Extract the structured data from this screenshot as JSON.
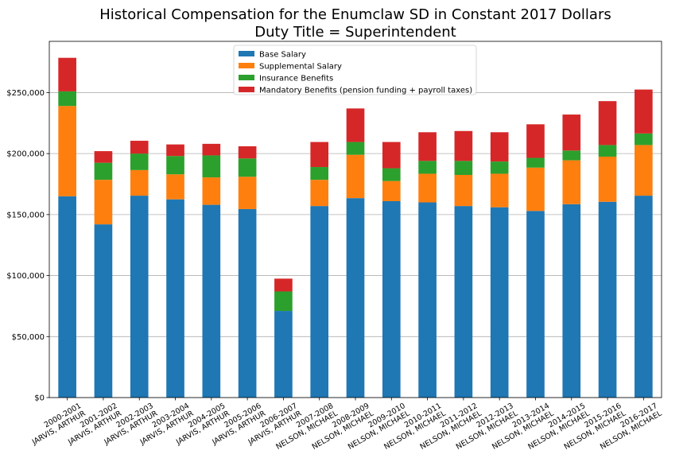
{
  "chart_data": {
    "type": "bar",
    "stacked": true,
    "title": "Historical Compensation for the Enumclaw SD in Constant 2017 Dollars",
    "subtitle": "Duty Title = Superintendent",
    "xlabel": "",
    "ylabel": "",
    "ylim": [
      0,
      292000
    ],
    "yticks": [
      0,
      50000,
      100000,
      150000,
      200000,
      250000
    ],
    "ytick_labels": [
      "$0",
      "$50,000",
      "$100,000",
      "$150,000",
      "$200,000",
      "$250,000"
    ],
    "grid": "horizontal",
    "legend_position": "top-center",
    "categories": [
      [
        "2000-2001",
        "JARVIS, ARTHUR"
      ],
      [
        "2001-2002",
        "JARVIS, ARTHUR"
      ],
      [
        "2002-2003",
        "JARVIS, ARTHUR"
      ],
      [
        "2003-2004",
        "JARVIS, ARTHUR"
      ],
      [
        "2004-2005",
        "JARVIS, ARTHUR"
      ],
      [
        "2005-2006",
        "JARVIS, ARTHUR"
      ],
      [
        "2006-2007",
        "JARVIS, ARTHUR"
      ],
      [
        "2007-2008",
        "NELSON, MICHAEL"
      ],
      [
        "2008-2009",
        "NELSON, MICHAEL"
      ],
      [
        "2009-2010",
        "NELSON, MICHAEL"
      ],
      [
        "2010-2011",
        "NELSON, MICHAEL"
      ],
      [
        "2011-2012",
        "NELSON, MICHAEL"
      ],
      [
        "2012-2013",
        "NELSON, MICHAEL"
      ],
      [
        "2013-2014",
        "NELSON, MICHAEL"
      ],
      [
        "2014-2015",
        "NELSON, MICHAEL"
      ],
      [
        "2015-2016",
        "NELSON, MICHAEL"
      ],
      [
        "2016-2017",
        "NELSON, MICHAEL"
      ]
    ],
    "series": [
      {
        "name": "Base Salary",
        "color": "#1f77b4",
        "values": [
          165000,
          142000,
          165500,
          162500,
          158000,
          154500,
          71000,
          157000,
          163500,
          161000,
          160000,
          157000,
          156000,
          153000,
          158500,
          160500,
          165500
        ]
      },
      {
        "name": "Supplemental Salary",
        "color": "#ff7f0e",
        "values": [
          74000,
          36500,
          21000,
          20500,
          22500,
          26500,
          0,
          21500,
          35500,
          16500,
          23500,
          25500,
          27500,
          35500,
          36000,
          37000,
          41500
        ]
      },
      {
        "name": "Insurance Benefits",
        "color": "#2ca02c",
        "values": [
          12000,
          14000,
          13500,
          15000,
          18000,
          15000,
          16000,
          10500,
          10500,
          10500,
          10500,
          11500,
          10000,
          8000,
          8000,
          9500,
          9500
        ]
      },
      {
        "name": "Mandatory Benefits (pension funding + payroll taxes)",
        "color": "#d62728",
        "values": [
          27500,
          9500,
          10500,
          9500,
          9500,
          10000,
          10500,
          20500,
          27500,
          21500,
          23500,
          24500,
          24000,
          27500,
          29500,
          36000,
          36000
        ]
      }
    ]
  }
}
